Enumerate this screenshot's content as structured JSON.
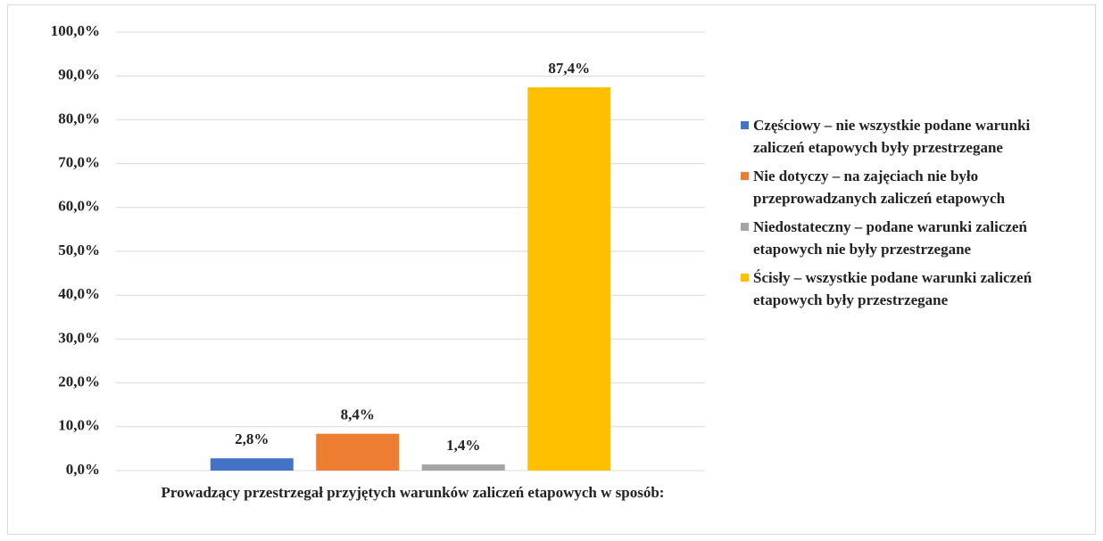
{
  "chart_data": {
    "type": "bar",
    "categories": [
      "Prowadzący przestrzegał przyjętych warunków zaliczeń etapowych w sposób:"
    ],
    "series": [
      {
        "name": "Częściowy – nie wszystkie podane warunki zaliczeń etapowych były przestrzegane",
        "color": "#4472c4",
        "values": [
          2.8
        ],
        "value_labels": [
          "2,8%"
        ]
      },
      {
        "name": "Nie dotyczy – na zajęciach nie było przeprowadzanych zaliczeń etapowych",
        "color": "#ed7d31",
        "values": [
          8.4
        ],
        "value_labels": [
          "8,4%"
        ]
      },
      {
        "name": "Niedostateczny – podane warunki zaliczeń etapowych nie były przestrzegane",
        "color": "#a5a5a5",
        "values": [
          1.4
        ],
        "value_labels": [
          "1,4%"
        ]
      },
      {
        "name": "Ścisły – wszystkie podane warunki zaliczeń etapowych były przestrzegane",
        "color": "#ffc000",
        "values": [
          87.4
        ],
        "value_labels": [
          "87,4%"
        ]
      }
    ],
    "ylim": [
      0,
      100
    ],
    "yticks": [
      {
        "value": 0,
        "label": "0,0%"
      },
      {
        "value": 10,
        "label": "10,0%"
      },
      {
        "value": 20,
        "label": "20,0%"
      },
      {
        "value": 30,
        "label": "30,0%"
      },
      {
        "value": 40,
        "label": "40,0%"
      },
      {
        "value": 50,
        "label": "50,0%"
      },
      {
        "value": 60,
        "label": "60,0%"
      },
      {
        "value": 70,
        "label": "70,0%"
      },
      {
        "value": 80,
        "label": "80,0%"
      },
      {
        "value": 90,
        "label": "90,0%"
      },
      {
        "value": 100,
        "label": "100,0%"
      }
    ],
    "grid": true,
    "legend": "right"
  }
}
